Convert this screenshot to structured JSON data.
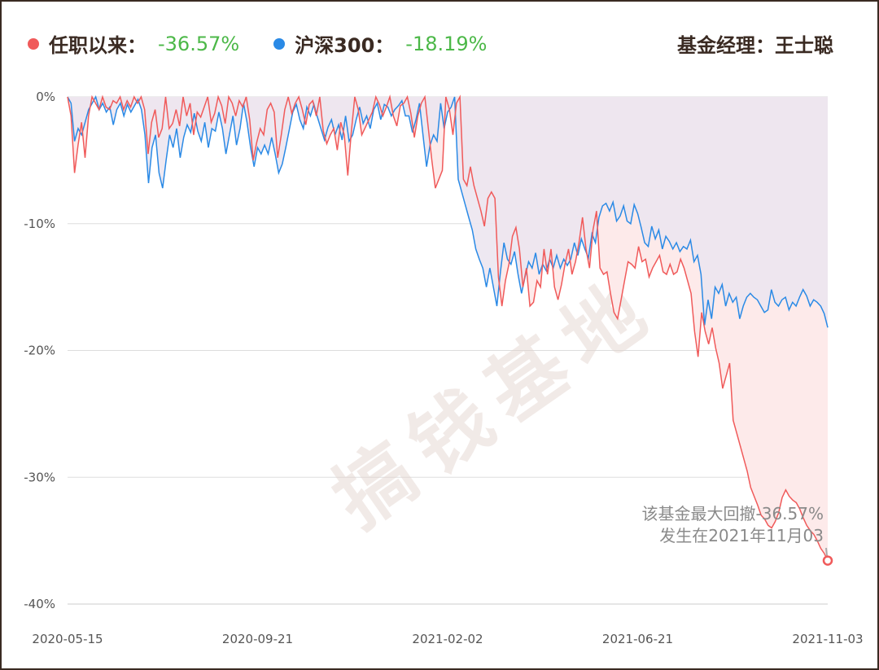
{
  "legend": [
    {
      "label": "任职以来：",
      "value": "-36.57%",
      "color": "#f05a5a"
    },
    {
      "label": "沪深300：",
      "value": "-18.19%",
      "color": "#2a8ae6"
    }
  ],
  "manager_label": "基金经理：王士聪",
  "watermark": "搞钱基地",
  "annotation": {
    "line1": "该基金最大回撤-36.57%",
    "line2": "发生在2021年11月03"
  },
  "colors": {
    "fund_line": "#f05a5a",
    "index_line": "#2a8ae6",
    "fund_fill": "#fdeaea",
    "index_fill": "#ece6f0",
    "value_text": "#4cb848"
  },
  "chart_data": {
    "type": "area",
    "x_tick_labels": [
      "2020-05-15",
      "2020-09-21",
      "2021-02-02",
      "2021-06-21",
      "2021-11-03"
    ],
    "y_tick_labels": [
      "0%",
      "-10%",
      "-20%",
      "-30%",
      "-40%"
    ],
    "ylim": [
      -40,
      0
    ],
    "grid": true,
    "series": [
      {
        "name": "任职以来",
        "values": [
          0,
          -1.5,
          -6,
          -3.8,
          -2,
          -4.8,
          -1.5,
          0,
          -0.5,
          -1,
          0,
          -0.8,
          -1,
          -0.3,
          -0.5,
          0,
          -1,
          -0.3,
          -0.8,
          0,
          -0.5,
          0,
          -1,
          -4.5,
          -2,
          -1,
          -3.2,
          -2.5,
          0,
          -2.5,
          -2.1,
          -1,
          -2.3,
          0,
          -1.5,
          -0.5,
          -3,
          -1.2,
          -1.6,
          -0.8,
          0,
          -2,
          -1.3,
          0,
          -0.7,
          -2.1,
          0,
          -0.5,
          -1.5,
          -0.3,
          -0.8,
          0,
          -1.8,
          -5,
          -3.6,
          -2.5,
          -3,
          -1,
          -0.5,
          -1.2,
          -4.8,
          -3,
          -1,
          0,
          -1.3,
          -0.5,
          0,
          -1,
          -2.2,
          -0.6,
          -0.3,
          -1.5,
          0,
          -2.7,
          -3.7,
          -3,
          -2.5,
          -4.2,
          -2,
          -3,
          -6.2,
          -2.8,
          0,
          -1,
          -3,
          -2.4,
          -1.8,
          -1.2,
          0,
          -0.6,
          -1.5,
          -0.8,
          0,
          -1.5,
          -2.3,
          -0.7,
          -0.5,
          0,
          -1.3,
          -3.2,
          -1.5,
          -0.5,
          0,
          -2.5,
          -5,
          -7.2,
          -6.5,
          -5.8,
          0,
          -1,
          -3,
          -0.5,
          0,
          -6.5,
          -7,
          -5.5,
          -7,
          -8,
          -9,
          -10.2,
          -8,
          -7.5,
          -8,
          -14.2,
          -16.5,
          -14.5,
          -13.2,
          -11,
          -10.3,
          -12,
          -15,
          -13.5,
          -16.5,
          -16.2,
          -14.5,
          -15,
          -12,
          -14,
          -12,
          -15,
          -16,
          -14.8,
          -13.2,
          -12,
          -14,
          -13,
          -11.5,
          -9.5,
          -12,
          -13.5,
          -10.5,
          -9,
          -13.5,
          -14,
          -13.8,
          -15.5,
          -17,
          -17.5,
          -16,
          -14.5,
          -13,
          -13.2,
          -13.5,
          -11.8,
          -13,
          -12.8,
          -14.2,
          -13.5,
          -13,
          -12.5,
          -13.8,
          -14,
          -13.2,
          -14,
          -13.8,
          -12.8,
          -13.5,
          -14.5,
          -15.5,
          -18.5,
          -20.5,
          -17,
          -18.5,
          -19.5,
          -18.2,
          -19.8,
          -21,
          -23,
          -22,
          -21,
          -25.5,
          -26.5,
          -27.5,
          -28.5,
          -29.5,
          -30.8,
          -31.5,
          -32.2,
          -33,
          -33.3,
          -33.8,
          -34,
          -33.5,
          -32.8,
          -31.6,
          -31,
          -31.5,
          -31.8,
          -32,
          -32.5,
          -33.2,
          -33.8,
          -34.2,
          -34.5,
          -35,
          -35.6,
          -36,
          -36.57
        ]
      },
      {
        "name": "沪深300",
        "values": [
          0,
          -0.5,
          -3.5,
          -2.5,
          -3,
          -2,
          -1,
          -0.5,
          0,
          -1,
          -0.5,
          -1.2,
          -0.8,
          -2.2,
          -1,
          -0.5,
          -1.5,
          -0.6,
          -1.2,
          -0.7,
          -0.2,
          -1,
          -3,
          -6.8,
          -4,
          -3,
          -6,
          -7.2,
          -5,
          -3,
          -4,
          -2.5,
          -4.8,
          -3.2,
          -2.2,
          -2.8,
          -1.3,
          -2.7,
          -3.5,
          -2,
          -4,
          -2.5,
          -2.7,
          -1.2,
          -2.5,
          -4.5,
          -3,
          -1.5,
          -3.8,
          -2.5,
          -0.5,
          -2,
          -4,
          -5.5,
          -4,
          -4.5,
          -3.8,
          -4.5,
          -3.2,
          -4.5,
          -6,
          -5.3,
          -4,
          -2.6,
          -1.2,
          -0.6,
          -1.8,
          -2.5,
          -0.8,
          -1.5,
          -0.6,
          -1.6,
          -2.5,
          -3.4,
          -2.4,
          -1.8,
          -3,
          -2.2,
          -3.4,
          -1.5,
          -3.5,
          -3,
          -1.8,
          -0.8,
          -2.1,
          -1.5,
          -2.5,
          -1,
          -0.5,
          -1.8,
          -0.6,
          -0.8,
          -1.5,
          -1,
          -0.7,
          -0.3,
          -1.5,
          -1.5,
          -2.8,
          -1.8,
          -0.5,
          -3,
          -5.5,
          -3.8,
          -3,
          -3.5,
          -0.5,
          -2.5,
          -1.2,
          -0.8,
          0,
          -6.5,
          -7.5,
          -8.5,
          -9.5,
          -10.5,
          -12,
          -12.8,
          -13.5,
          -15,
          -13.5,
          -15,
          -16.5,
          -13.8,
          -11.5,
          -12.8,
          -13.2,
          -12.2,
          -14,
          -15.5,
          -14.2,
          -13,
          -13.5,
          -12.3,
          -14,
          -13.2,
          -13.7,
          -12.8,
          -13.5,
          -12.5,
          -13.5,
          -12.8,
          -13.3,
          -12.8,
          -11.5,
          -12.5,
          -11.2,
          -12,
          -12.7,
          -10.8,
          -11.5,
          -9.5,
          -8.6,
          -8.4,
          -9,
          -8.3,
          -9.8,
          -9.4,
          -8.6,
          -9.8,
          -10,
          -8.5,
          -9.2,
          -10.3,
          -11.5,
          -11.8,
          -10.2,
          -11.2,
          -10.5,
          -12,
          -11,
          -11.4,
          -12,
          -11.5,
          -12.2,
          -11.8,
          -12,
          -11.3,
          -13,
          -12.5,
          -14,
          -18,
          -16,
          -17.5,
          -15,
          -15.5,
          -14.8,
          -16.5,
          -15.5,
          -16.2,
          -15.8,
          -17.5,
          -16.5,
          -15.8,
          -15.5,
          -15.8,
          -16,
          -16.5,
          -17,
          -16.8,
          -15.2,
          -16.2,
          -16.5,
          -16,
          -15.8,
          -16.8,
          -16.2,
          -16.5,
          -15.8,
          -15.2,
          -15.7,
          -16.5,
          -16,
          -16.2,
          -16.5,
          -17.1,
          -18.19
        ]
      }
    ]
  }
}
